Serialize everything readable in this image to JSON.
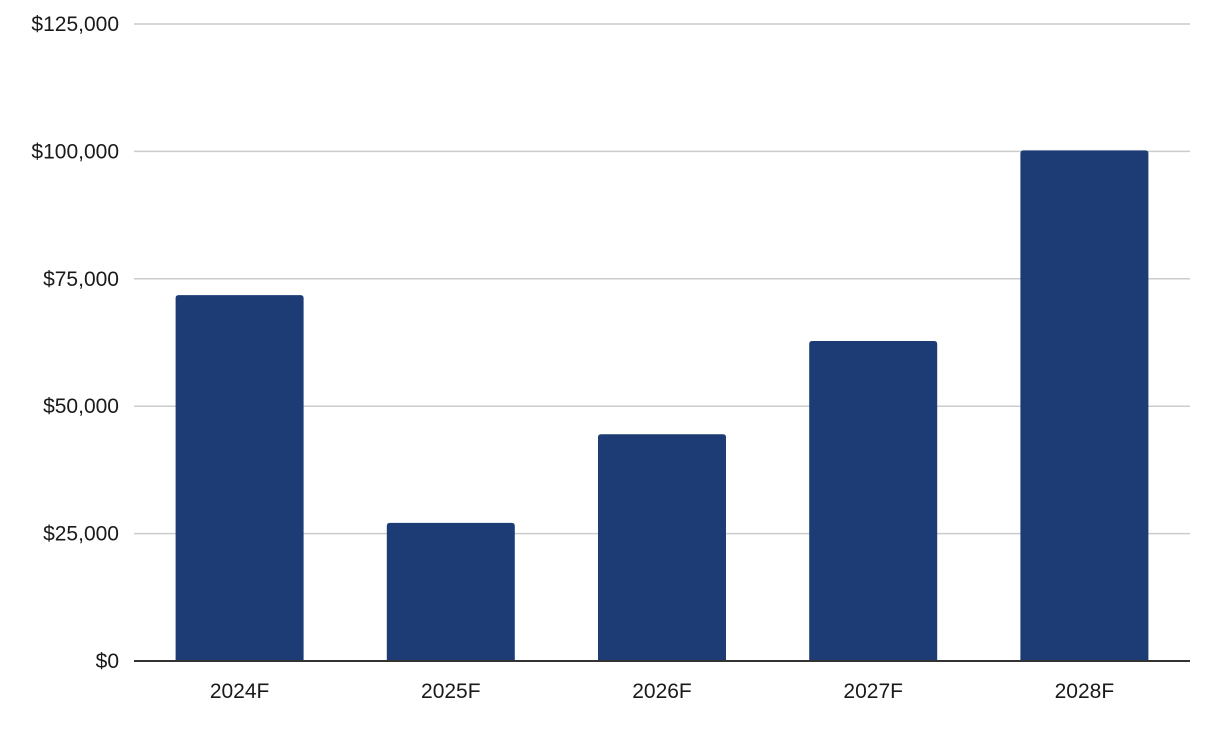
{
  "chart_data": {
    "type": "bar",
    "title": "",
    "xlabel": "",
    "ylabel": "",
    "categories": [
      "2024F",
      "2025F",
      "2026F",
      "2027F",
      "2028F"
    ],
    "values": [
      71800,
      27100,
      44500,
      62800,
      100200
    ],
    "ylim": [
      0,
      125000
    ],
    "yticks": [
      0,
      25000,
      50000,
      75000,
      100000,
      125000
    ],
    "ytick_labels": [
      "$0",
      "$25,000",
      "$50,000",
      "$75,000",
      "$100,000",
      "$125,000"
    ],
    "grid": true,
    "legend": "none",
    "colors": {
      "bar": "#1d3b75",
      "grid": "#cccccc",
      "axis": "#333333"
    }
  }
}
